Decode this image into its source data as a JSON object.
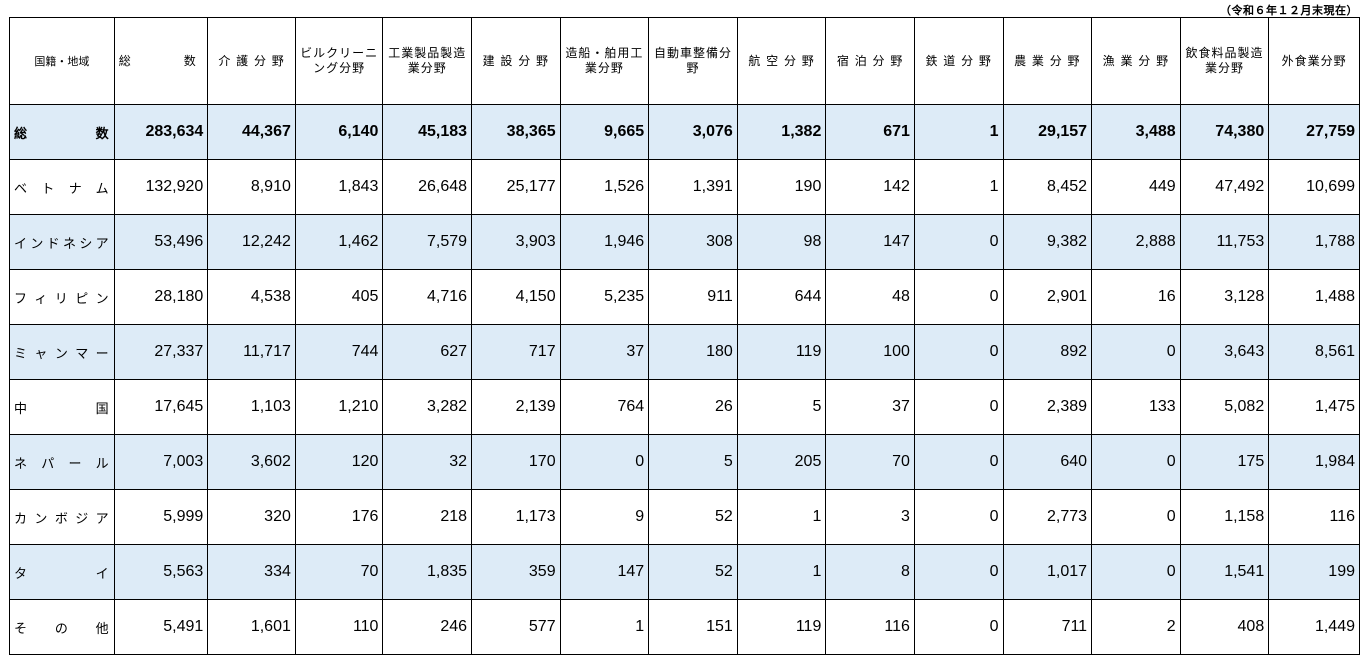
{
  "date_note": "（令和６年１２月末現在）",
  "headers": {
    "country": "国籍・地域",
    "total": "総　　　　数",
    "fields": [
      "介 護 分 野",
      "ビルクリーニング分野",
      "工業製品製造業分野",
      "建 設 分 野",
      "造船・舶用工業分野",
      "自動車整備分野",
      "航 空 分 野",
      "宿 泊 分 野",
      "鉄 道 分 野",
      "農 業 分 野",
      "漁 業 分 野",
      "飲食料品製造業分野",
      "外食業分野"
    ]
  },
  "rows": [
    {
      "country": "総数",
      "values": [
        "283,634",
        "44,367",
        "6,140",
        "45,183",
        "38,365",
        "9,665",
        "3,076",
        "1,382",
        "671",
        "1",
        "29,157",
        "3,488",
        "74,380",
        "27,759"
      ]
    },
    {
      "country": "ベトナム",
      "values": [
        "132,920",
        "8,910",
        "1,843",
        "26,648",
        "25,177",
        "1,526",
        "1,391",
        "190",
        "142",
        "1",
        "8,452",
        "449",
        "47,492",
        "10,699"
      ]
    },
    {
      "country": "インドネシア",
      "values": [
        "53,496",
        "12,242",
        "1,462",
        "7,579",
        "3,903",
        "1,946",
        "308",
        "98",
        "147",
        "0",
        "9,382",
        "2,888",
        "11,753",
        "1,788"
      ]
    },
    {
      "country": "フィリピン",
      "values": [
        "28,180",
        "4,538",
        "405",
        "4,716",
        "4,150",
        "5,235",
        "911",
        "644",
        "48",
        "0",
        "2,901",
        "16",
        "3,128",
        "1,488"
      ]
    },
    {
      "country": "ミャンマー",
      "values": [
        "27,337",
        "11,717",
        "744",
        "627",
        "717",
        "37",
        "180",
        "119",
        "100",
        "0",
        "892",
        "0",
        "3,643",
        "8,561"
      ]
    },
    {
      "country": "中国",
      "values": [
        "17,645",
        "1,103",
        "1,210",
        "3,282",
        "2,139",
        "764",
        "26",
        "5",
        "37",
        "0",
        "2,389",
        "133",
        "5,082",
        "1,475"
      ]
    },
    {
      "country": "ネパール",
      "values": [
        "7,003",
        "3,602",
        "120",
        "32",
        "170",
        "0",
        "5",
        "205",
        "70",
        "0",
        "640",
        "0",
        "175",
        "1,984"
      ]
    },
    {
      "country": "カンボジア",
      "values": [
        "5,999",
        "320",
        "176",
        "218",
        "1,173",
        "9",
        "52",
        "1",
        "3",
        "0",
        "2,773",
        "0",
        "1,158",
        "116"
      ]
    },
    {
      "country": "タイ",
      "values": [
        "5,563",
        "334",
        "70",
        "1,835",
        "359",
        "147",
        "52",
        "1",
        "8",
        "0",
        "1,017",
        "0",
        "1,541",
        "199"
      ]
    },
    {
      "country": "その他",
      "values": [
        "5,491",
        "1,601",
        "110",
        "246",
        "577",
        "1",
        "151",
        "119",
        "116",
        "0",
        "711",
        "2",
        "408",
        "1,449"
      ]
    }
  ]
}
